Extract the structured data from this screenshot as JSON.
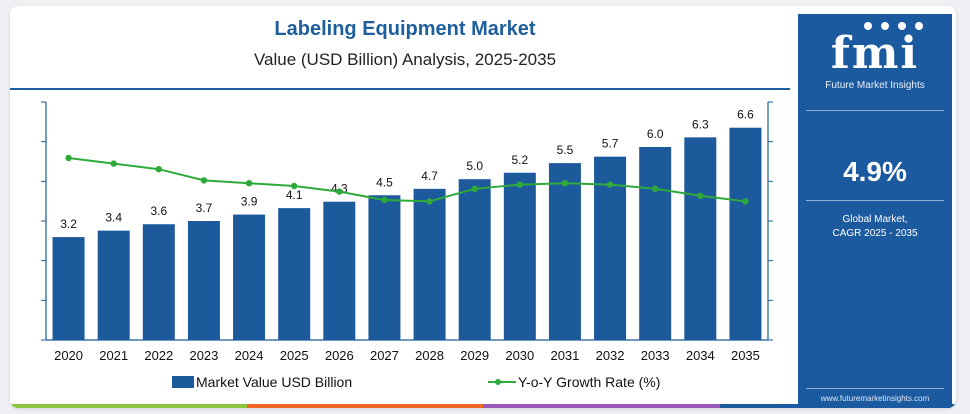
{
  "header": {
    "title": "Labeling Equipment Market",
    "subtitle": "Value (USD Billion) Analysis, 2025-2035"
  },
  "chart_data": {
    "type": "bar",
    "title": "Labeling Equipment Market",
    "subtitle": "Value (USD Billion) Analysis, 2025-2035",
    "categories": [
      "2020",
      "2021",
      "2022",
      "2023",
      "2024",
      "2025",
      "2026",
      "2027",
      "2028",
      "2029",
      "2030",
      "2031",
      "2032",
      "2033",
      "2034",
      "2035"
    ],
    "series": [
      {
        "name": "Market Value USD Billion",
        "type": "bar",
        "values": [
          3.2,
          3.4,
          3.6,
          3.7,
          3.9,
          4.1,
          4.3,
          4.5,
          4.7,
          5.0,
          5.2,
          5.5,
          5.7,
          6.0,
          6.3,
          6.6
        ],
        "labels": [
          "3.2",
          "3.4",
          "3.6",
          "3.7",
          "3.9",
          "4.1",
          "4.3",
          "4.5",
          "4.7",
          "5.0",
          "5.2",
          "5.5",
          "5.7",
          "6.0",
          "6.3",
          "6.6"
        ]
      },
      {
        "name": "Y-o-Y Growth Rate (%)",
        "type": "line",
        "values": [
          6.5,
          6.3,
          6.1,
          5.7,
          5.6,
          5.5,
          5.3,
          5.0,
          4.95,
          5.4,
          5.55,
          5.6,
          5.55,
          5.4,
          5.15,
          4.95
        ]
      }
    ],
    "ylim": [
      0,
      7.4
    ],
    "y2lim": [
      0,
      8.5
    ],
    "grid": false,
    "legend": "bottom",
    "colors": {
      "bar": "#1c5a9c",
      "line": "#2eaa3a",
      "axis": "#1c5a9c"
    }
  },
  "legend": {
    "bar_label": "Market Value USD Billion",
    "line_label": "Y-o-Y Growth Rate (%)"
  },
  "sidebar": {
    "logo_text": "fmi",
    "logo_subtitle": "Future Market Insights",
    "cagr_value": "4.9%",
    "cagr_line1": "Global Market,",
    "cagr_line2": "CAGR 2025 - 2035",
    "url": "www.futuremarketinsights.com",
    "background": "#1c5aa0"
  },
  "bottom_strip_colors": [
    "#8cc63f",
    "#f26522",
    "#9b59b6",
    "#1c5aa0"
  ]
}
